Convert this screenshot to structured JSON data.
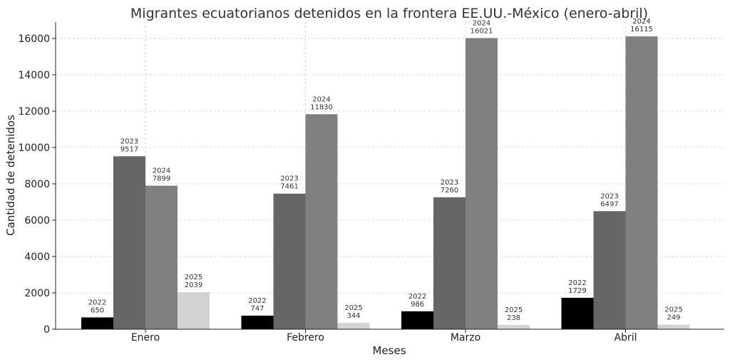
{
  "chart_data": {
    "type": "bar",
    "title": "Migrantes ecuatorianos detenidos en la frontera EE.UU.-México (enero-abril)",
    "xlabel": "Meses",
    "ylabel": "Cantidad de detenidos",
    "categories": [
      "Enero",
      "Febrero",
      "Marzo",
      "Abril"
    ],
    "ylim": [
      0,
      16900
    ],
    "yticks": [
      0,
      2000,
      4000,
      6000,
      8000,
      10000,
      12000,
      14000,
      16000
    ],
    "grid": true,
    "series": [
      {
        "name": "2022",
        "color": "#000000",
        "values": [
          650,
          747,
          986,
          1729
        ]
      },
      {
        "name": "2023",
        "color": "#666666",
        "values": [
          9517,
          7461,
          7260,
          6497
        ]
      },
      {
        "name": "2024",
        "color": "#808080",
        "values": [
          7899,
          11830,
          16021,
          16115
        ]
      },
      {
        "name": "2025",
        "color": "#d3d3d3",
        "values": [
          2039,
          344,
          238,
          249
        ]
      }
    ]
  }
}
